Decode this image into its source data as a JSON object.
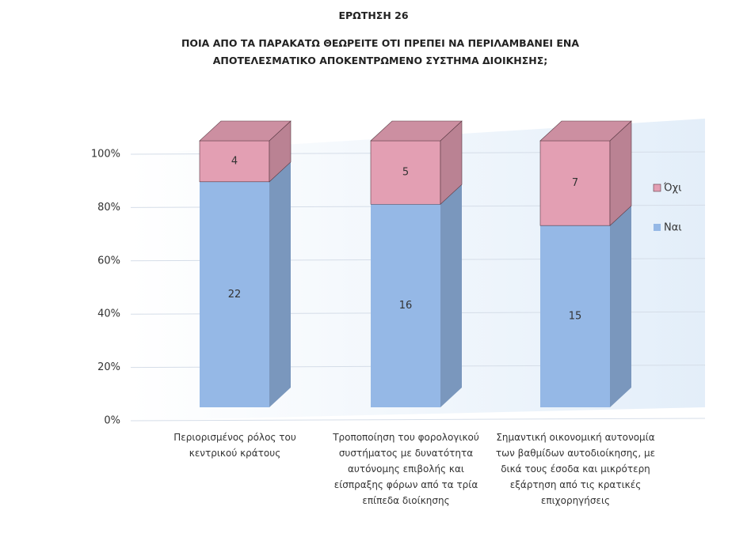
{
  "chart_data": {
    "type": "bar",
    "stack": "percent",
    "title": "ΕΡΩΤΗΣΗ 26",
    "subtitle": "ΠΟΙΑ ΑΠΟ ΤΑ ΠΑΡΑΚΑΤΩ ΘΕΩΡΕΙΤΕ ΟΤΙ ΠΡΕΠΕΙ ΝΑ ΠΕΡΙΛΑΜΒΑΝΕΙ ΕΝΑ ΑΠΟΤΕΛΕΣΜΑΤΙΚΟ ΑΠΟΚΕΝΤΡΩΜΕΝΟ ΣΥΣΤΗΜΑ ΔΙΟΙΚΗΣΗΣ;",
    "categories": [
      "Περιορισμένος ρόλος του κεντρικού κράτους",
      "Τροποποίηση του φορολογικού συστήματος με δυνατότητα αυτόνομης επιβολής και είσπραξης φόρων από τα τρία επίπεδα διοίκησης",
      "Σημαντική οικονομική αυτονομία των βαθμίδων αυτοδιοίκησης, με δικά τους έσοδα και μικρότερη εξάρτηση από τις κρατικές επιχορηγήσεις"
    ],
    "series": [
      {
        "name": "Ναι",
        "color": "#95b8e6",
        "values": [
          22,
          16,
          15
        ]
      },
      {
        "name": "Όχι",
        "color": "#e39fb3",
        "values": [
          4,
          5,
          7
        ]
      }
    ],
    "ylim": [
      0,
      100
    ],
    "yticks": [
      {
        "value": 0,
        "label": "0%"
      },
      {
        "value": 20,
        "label": "20%"
      },
      {
        "value": 40,
        "label": "40%"
      },
      {
        "value": 60,
        "label": "60%"
      },
      {
        "value": 80,
        "label": "80%"
      },
      {
        "value": 100,
        "label": "100%"
      }
    ],
    "grid": true,
    "legend": "right"
  }
}
